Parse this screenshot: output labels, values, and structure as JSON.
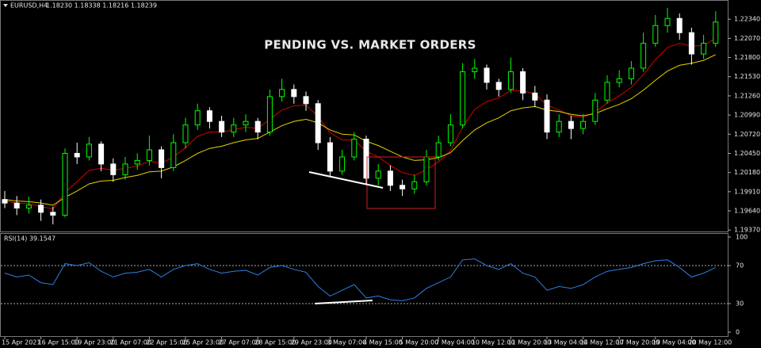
{
  "chart_data": [
    {
      "type": "candlestick",
      "symbol": "EURUSD,H4",
      "quote": "1.18230 1.18338 1.18216 1.18239",
      "annotation": "PENDING VS. MARKET ORDERS",
      "up_color": "#00ff00",
      "down_color": "#ffffff",
      "open": [
        1.198,
        1.1975,
        1.1968,
        1.1972,
        1.1962,
        1.1958,
        1.2045,
        1.204,
        1.2058,
        1.203,
        1.2015,
        1.203,
        1.2035,
        1.205,
        1.2025,
        1.206,
        1.2085,
        1.2105,
        1.209,
        1.2075,
        1.2085,
        1.209,
        1.2075,
        1.2125,
        1.2135,
        1.2125,
        1.2115,
        1.206,
        1.202,
        1.204,
        1.2065,
        1.201,
        1.202,
        1.2,
        1.1995,
        1.2005,
        1.204,
        1.206,
        1.2085,
        1.216,
        1.2165,
        1.2145,
        1.2135,
        1.216,
        1.213,
        1.212,
        1.2075,
        1.209,
        1.208,
        1.209,
        1.212,
        1.2145,
        1.215,
        1.2165,
        1.22,
        1.2225,
        1.2235,
        1.2215,
        1.2185,
        1.22
      ],
      "high": [
        1.1992,
        1.1985,
        1.1984,
        1.198,
        1.197,
        1.2052,
        1.206,
        1.2068,
        1.2062,
        1.2038,
        1.204,
        1.2045,
        1.207,
        1.2055,
        1.2072,
        1.2095,
        1.2115,
        1.211,
        1.2098,
        1.2095,
        1.21,
        1.2095,
        1.2135,
        1.215,
        1.2142,
        1.2132,
        1.212,
        1.2068,
        1.205,
        1.2075,
        1.207,
        1.203,
        1.2028,
        1.2008,
        1.2015,
        1.205,
        1.207,
        1.21,
        1.2172,
        1.2178,
        1.217,
        1.215,
        1.218,
        1.2165,
        1.214,
        1.2128,
        1.21,
        1.2098,
        1.21,
        1.213,
        1.2155,
        1.2162,
        1.2175,
        1.2215,
        1.224,
        1.225,
        1.2242,
        1.2222,
        1.2212,
        1.2245
      ],
      "low": [
        1.1968,
        1.1958,
        1.196,
        1.195,
        1.1945,
        1.1955,
        1.203,
        1.2035,
        1.202,
        1.2005,
        1.2008,
        1.2022,
        1.2028,
        1.201,
        1.202,
        1.2052,
        1.2078,
        1.208,
        1.2068,
        1.2068,
        1.2075,
        1.2065,
        1.207,
        1.2118,
        1.2115,
        1.2105,
        1.205,
        1.2012,
        1.2015,
        1.2035,
        1.2002,
        1.2,
        1.1992,
        1.1985,
        1.1988,
        1.2,
        1.2035,
        1.2055,
        1.208,
        1.215,
        1.2135,
        1.2125,
        1.213,
        1.212,
        1.211,
        1.2065,
        1.2068,
        1.2065,
        1.2072,
        1.2085,
        1.2115,
        1.2138,
        1.2142,
        1.216,
        1.2195,
        1.2215,
        1.2205,
        1.217,
        1.2178,
        1.2195
      ],
      "close": [
        1.1975,
        1.1968,
        1.1972,
        1.1962,
        1.1958,
        1.2045,
        1.204,
        1.2058,
        1.203,
        1.2015,
        1.203,
        1.2035,
        1.205,
        1.2025,
        1.206,
        1.2085,
        1.2105,
        1.209,
        1.2075,
        1.2085,
        1.209,
        1.2075,
        1.2125,
        1.2135,
        1.2125,
        1.2115,
        1.206,
        1.202,
        1.204,
        1.2065,
        1.201,
        1.202,
        1.2,
        1.1995,
        1.2005,
        1.204,
        1.206,
        1.2085,
        1.216,
        1.2165,
        1.2145,
        1.2135,
        1.216,
        1.213,
        1.212,
        1.2075,
        1.209,
        1.208,
        1.209,
        1.212,
        1.2145,
        1.215,
        1.2165,
        1.22,
        1.2225,
        1.2235,
        1.2215,
        1.2185,
        1.22,
        1.223
      ],
      "lines": [
        {
          "color": "#d40000",
          "values": [
            1.1978,
            1.1975,
            1.1974,
            1.197,
            1.1967,
            1.199,
            1.2005,
            1.2021,
            1.2024,
            1.2021,
            1.2024,
            1.2027,
            1.2034,
            1.2031,
            1.204,
            1.2053,
            1.2069,
            1.2075,
            1.2075,
            1.2078,
            1.2082,
            1.208,
            1.2093,
            1.2106,
            1.2112,
            1.2113,
            1.2097,
            1.2074,
            1.2064,
            1.2064,
            1.2048,
            1.204,
            1.2028,
            1.2018,
            1.2014,
            1.2022,
            1.2033,
            1.2049,
            1.2082,
            1.2107,
            1.2118,
            1.2123,
            1.2134,
            1.2133,
            1.2129,
            1.2113,
            1.2106,
            1.2098,
            1.2096,
            1.2103,
            1.2116,
            1.2126,
            1.2138,
            1.2156,
            1.2177,
            1.2194,
            1.22,
            1.2196,
            1.2197,
            1.2207
          ]
        },
        {
          "color": "#e6d200",
          "values": [
            1.198,
            1.1978,
            1.1977,
            1.1975,
            1.1972,
            1.1983,
            1.1992,
            1.2002,
            1.2006,
            1.2007,
            1.2011,
            1.2014,
            1.2019,
            1.202,
            1.2026,
            1.2035,
            1.2045,
            1.2052,
            1.2055,
            1.206,
            1.2064,
            1.2066,
            1.2075,
            1.2084,
            1.209,
            1.2093,
            1.2088,
            1.2078,
            1.2072,
            1.2071,
            1.2062,
            1.2056,
            1.2048,
            1.204,
            1.2035,
            1.2036,
            1.2039,
            1.2046,
            1.2063,
            1.2078,
            1.2088,
            1.2095,
            1.2105,
            1.2109,
            1.2111,
            1.2106,
            1.2104,
            1.21,
            1.2098,
            1.2101,
            1.2108,
            1.2114,
            1.2122,
            1.2134,
            1.2148,
            1.2161,
            1.2169,
            1.2172,
            1.2176,
            1.2184
          ]
        }
      ],
      "ylim": [
        1.1935,
        1.2261
      ],
      "yticks": [
        {
          "value": 1.2234,
          "label": "1.22340"
        },
        {
          "value": 1.2207,
          "label": "1.22070"
        },
        {
          "value": 1.218,
          "label": "1.21800"
        },
        {
          "value": 1.2153,
          "label": "1.21530"
        },
        {
          "value": 1.2126,
          "label": "1.21260"
        },
        {
          "value": 1.2099,
          "label": "1.20990"
        },
        {
          "value": 1.2072,
          "label": "1.20720"
        },
        {
          "value": 1.2045,
          "label": "1.20450"
        },
        {
          "value": 1.2018,
          "label": "1.20180"
        },
        {
          "value": 1.1991,
          "label": "1.19910"
        },
        {
          "value": 1.1964,
          "label": "1.19640"
        },
        {
          "value": 1.1937,
          "label": "1.19370"
        }
      ]
    },
    {
      "type": "line",
      "title": "RSI(14) 39.1547",
      "color": "#2f7fe0",
      "categories": [
        "15 Apr 2021",
        null,
        null,
        "16 Apr 15:00",
        null,
        null,
        "19 Apr 23:00",
        null,
        null,
        "21 Apr 07:00",
        null,
        null,
        "22 Apr 15:00",
        null,
        null,
        "25 Apr 23:00",
        null,
        null,
        "27 Apr 07:00",
        null,
        null,
        "28 Apr 15:00",
        null,
        null,
        "29 Apr 23:00",
        null,
        null,
        "3 May 07:00",
        null,
        null,
        "4 May 15:00",
        null,
        null,
        "5 May 20:00",
        null,
        null,
        "7 May 04:00",
        null,
        null,
        "10 May 12:00",
        null,
        null,
        "11 May 20:00",
        null,
        null,
        "13 May 04:00",
        null,
        null,
        "14 May 12:00",
        null,
        null,
        "17 May 20:00",
        null,
        null,
        "19 May 04:00",
        null,
        null,
        "20 May 12:00",
        null,
        null
      ],
      "values": [
        62,
        58,
        60,
        52,
        50,
        72,
        70,
        73,
        64,
        58,
        62,
        63,
        66,
        58,
        66,
        70,
        72,
        66,
        62,
        64,
        65,
        60,
        68,
        70,
        66,
        63,
        48,
        38,
        44,
        50,
        36,
        38,
        34,
        33,
        36,
        46,
        52,
        58,
        76,
        77,
        70,
        66,
        72,
        62,
        58,
        44,
        48,
        46,
        50,
        58,
        64,
        66,
        68,
        72,
        75,
        76,
        68,
        58,
        62,
        68
      ],
      "ylim": [
        0,
        100
      ],
      "yticks": [
        100,
        70,
        30,
        0
      ],
      "levels": [
        70,
        30
      ]
    }
  ]
}
